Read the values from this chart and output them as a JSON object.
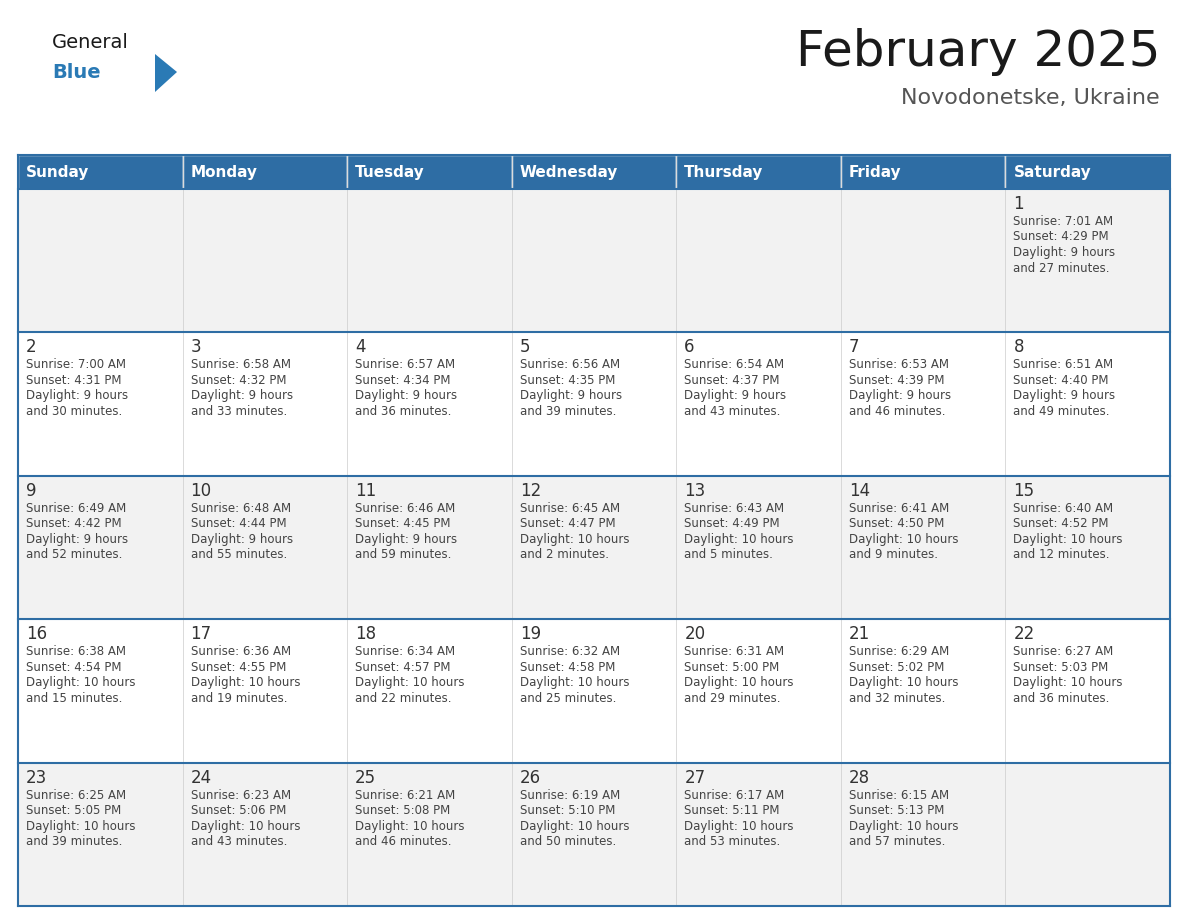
{
  "title": "February 2025",
  "subtitle": "Novodonetske, Ukraine",
  "days_of_week": [
    "Sunday",
    "Monday",
    "Tuesday",
    "Wednesday",
    "Thursday",
    "Friday",
    "Saturday"
  ],
  "header_bg": "#2e6da4",
  "header_text": "#ffffff",
  "row_bg_odd": "#f2f2f2",
  "row_bg_even": "#ffffff",
  "grid_line_color": "#2e6da4",
  "day_number_color": "#333333",
  "text_color": "#444444",
  "logo_general_color": "#1a1a1a",
  "logo_blue_color": "#2a7ab5",
  "title_color": "#1a1a1a",
  "subtitle_color": "#555555",
  "calendar_data": {
    "1": {
      "row": 0,
      "col": 6,
      "sunrise": "7:01 AM",
      "sunset": "4:29 PM",
      "daylight": "9 hours and 27 minutes"
    },
    "2": {
      "row": 1,
      "col": 0,
      "sunrise": "7:00 AM",
      "sunset": "4:31 PM",
      "daylight": "9 hours and 30 minutes"
    },
    "3": {
      "row": 1,
      "col": 1,
      "sunrise": "6:58 AM",
      "sunset": "4:32 PM",
      "daylight": "9 hours and 33 minutes"
    },
    "4": {
      "row": 1,
      "col": 2,
      "sunrise": "6:57 AM",
      "sunset": "4:34 PM",
      "daylight": "9 hours and 36 minutes"
    },
    "5": {
      "row": 1,
      "col": 3,
      "sunrise": "6:56 AM",
      "sunset": "4:35 PM",
      "daylight": "9 hours and 39 minutes"
    },
    "6": {
      "row": 1,
      "col": 4,
      "sunrise": "6:54 AM",
      "sunset": "4:37 PM",
      "daylight": "9 hours and 43 minutes"
    },
    "7": {
      "row": 1,
      "col": 5,
      "sunrise": "6:53 AM",
      "sunset": "4:39 PM",
      "daylight": "9 hours and 46 minutes"
    },
    "8": {
      "row": 1,
      "col": 6,
      "sunrise": "6:51 AM",
      "sunset": "4:40 PM",
      "daylight": "9 hours and 49 minutes"
    },
    "9": {
      "row": 2,
      "col": 0,
      "sunrise": "6:49 AM",
      "sunset": "4:42 PM",
      "daylight": "9 hours and 52 minutes"
    },
    "10": {
      "row": 2,
      "col": 1,
      "sunrise": "6:48 AM",
      "sunset": "4:44 PM",
      "daylight": "9 hours and 55 minutes"
    },
    "11": {
      "row": 2,
      "col": 2,
      "sunrise": "6:46 AM",
      "sunset": "4:45 PM",
      "daylight": "9 hours and 59 minutes"
    },
    "12": {
      "row": 2,
      "col": 3,
      "sunrise": "6:45 AM",
      "sunset": "4:47 PM",
      "daylight": "10 hours and 2 minutes"
    },
    "13": {
      "row": 2,
      "col": 4,
      "sunrise": "6:43 AM",
      "sunset": "4:49 PM",
      "daylight": "10 hours and 5 minutes"
    },
    "14": {
      "row": 2,
      "col": 5,
      "sunrise": "6:41 AM",
      "sunset": "4:50 PM",
      "daylight": "10 hours and 9 minutes"
    },
    "15": {
      "row": 2,
      "col": 6,
      "sunrise": "6:40 AM",
      "sunset": "4:52 PM",
      "daylight": "10 hours and 12 minutes"
    },
    "16": {
      "row": 3,
      "col": 0,
      "sunrise": "6:38 AM",
      "sunset": "4:54 PM",
      "daylight": "10 hours and 15 minutes"
    },
    "17": {
      "row": 3,
      "col": 1,
      "sunrise": "6:36 AM",
      "sunset": "4:55 PM",
      "daylight": "10 hours and 19 minutes"
    },
    "18": {
      "row": 3,
      "col": 2,
      "sunrise": "6:34 AM",
      "sunset": "4:57 PM",
      "daylight": "10 hours and 22 minutes"
    },
    "19": {
      "row": 3,
      "col": 3,
      "sunrise": "6:32 AM",
      "sunset": "4:58 PM",
      "daylight": "10 hours and 25 minutes"
    },
    "20": {
      "row": 3,
      "col": 4,
      "sunrise": "6:31 AM",
      "sunset": "5:00 PM",
      "daylight": "10 hours and 29 minutes"
    },
    "21": {
      "row": 3,
      "col": 5,
      "sunrise": "6:29 AM",
      "sunset": "5:02 PM",
      "daylight": "10 hours and 32 minutes"
    },
    "22": {
      "row": 3,
      "col": 6,
      "sunrise": "6:27 AM",
      "sunset": "5:03 PM",
      "daylight": "10 hours and 36 minutes"
    },
    "23": {
      "row": 4,
      "col": 0,
      "sunrise": "6:25 AM",
      "sunset": "5:05 PM",
      "daylight": "10 hours and 39 minutes"
    },
    "24": {
      "row": 4,
      "col": 1,
      "sunrise": "6:23 AM",
      "sunset": "5:06 PM",
      "daylight": "10 hours and 43 minutes"
    },
    "25": {
      "row": 4,
      "col": 2,
      "sunrise": "6:21 AM",
      "sunset": "5:08 PM",
      "daylight": "10 hours and 46 minutes"
    },
    "26": {
      "row": 4,
      "col": 3,
      "sunrise": "6:19 AM",
      "sunset": "5:10 PM",
      "daylight": "10 hours and 50 minutes"
    },
    "27": {
      "row": 4,
      "col": 4,
      "sunrise": "6:17 AM",
      "sunset": "5:11 PM",
      "daylight": "10 hours and 53 minutes"
    },
    "28": {
      "row": 4,
      "col": 5,
      "sunrise": "6:15 AM",
      "sunset": "5:13 PM",
      "daylight": "10 hours and 57 minutes"
    }
  }
}
